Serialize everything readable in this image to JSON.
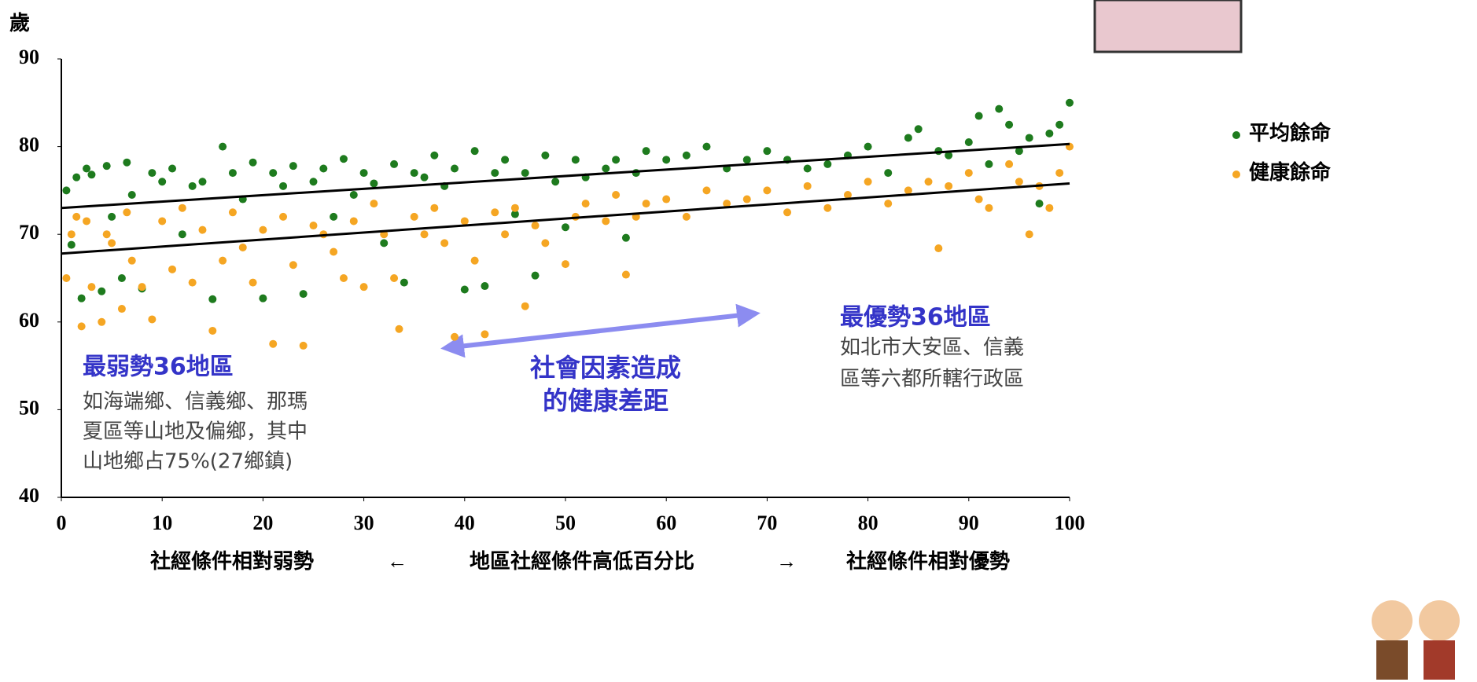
{
  "chart_data": {
    "type": "scatter",
    "y_label": "歲",
    "x_label_parts": [
      "社經條件相對弱勢",
      "←",
      "地區社經條件高低百分比",
      "→",
      "社經條件相對優勢"
    ],
    "xlim": [
      0,
      100
    ],
    "xticks": [
      0,
      10,
      20,
      30,
      40,
      50,
      60,
      70,
      80,
      90,
      100
    ],
    "ylim": [
      40,
      90
    ],
    "yticks": [
      40,
      50,
      60,
      70,
      80,
      90
    ],
    "legend": "right",
    "series": [
      {
        "name": "平均餘命",
        "color": "#1e7b1e",
        "x": [
          0.5,
          1,
          1.5,
          2,
          2.5,
          3,
          4,
          4.5,
          5,
          6,
          6.5,
          7,
          8,
          9,
          10,
          11,
          12,
          13,
          14,
          15,
          16,
          17,
          18,
          19,
          20,
          21,
          22,
          23,
          24,
          25,
          26,
          27,
          28,
          29,
          30,
          31,
          32,
          33,
          34,
          35,
          36,
          37,
          38,
          39,
          40,
          41,
          42,
          43,
          44,
          45,
          46,
          47,
          48,
          49,
          50,
          51,
          52,
          54,
          55,
          56,
          57,
          58,
          60,
          62,
          64,
          66,
          68,
          70,
          72,
          74,
          76,
          78,
          80,
          82,
          84,
          85,
          87,
          88,
          90,
          91,
          92,
          93,
          94,
          95,
          96,
          97,
          98,
          99,
          100
        ],
        "values": [
          75,
          68.8,
          76.5,
          62.7,
          77.5,
          76.8,
          63.5,
          77.8,
          72,
          65,
          78.2,
          74.5,
          63.8,
          77,
          76,
          77.5,
          70,
          75.5,
          76,
          62.6,
          80,
          77,
          74,
          78.2,
          62.7,
          77,
          75.5,
          77.8,
          63.2,
          76,
          77.5,
          72,
          78.6,
          74.5,
          77,
          75.8,
          69,
          78,
          64.5,
          77,
          76.5,
          79,
          75.5,
          77.5,
          63.7,
          79.5,
          64.1,
          77,
          78.5,
          72.3,
          77,
          65.3,
          79,
          76,
          70.8,
          78.5,
          76.5,
          77.5,
          78.5,
          69.6,
          77,
          79.5,
          78.5,
          79,
          80,
          77.5,
          78.5,
          79.5,
          78.5,
          77.5,
          78,
          79,
          80,
          77,
          81,
          82,
          79.5,
          79,
          80.5,
          83.5,
          78,
          84.3,
          82.5,
          79.5,
          81,
          73.5,
          81.5,
          82.5,
          85
        ]
      },
      {
        "name": "健康餘命",
        "color": "#f5a623",
        "x": [
          0.5,
          1,
          1.5,
          2,
          2.5,
          3,
          4,
          4.5,
          5,
          6,
          6.5,
          7,
          8,
          9,
          10,
          11,
          12,
          13,
          14,
          15,
          16,
          17,
          18,
          19,
          20,
          21,
          22,
          23,
          24,
          25,
          26,
          27,
          28,
          29,
          30,
          31,
          32,
          33,
          33.5,
          35,
          36,
          37,
          38,
          39,
          40,
          41,
          42,
          43,
          44,
          45,
          46,
          47,
          48,
          50,
          51,
          52,
          54,
          55,
          56,
          57,
          58,
          60,
          62,
          64,
          66,
          68,
          70,
          72,
          74,
          76,
          78,
          80,
          82,
          84,
          86,
          87,
          88,
          90,
          91,
          92,
          94,
          95,
          96,
          97,
          98,
          99,
          100
        ],
        "values": [
          65,
          70,
          72,
          59.5,
          71.5,
          64,
          60,
          70,
          69,
          61.5,
          72.5,
          67,
          64,
          60.3,
          71.5,
          66,
          73,
          64.5,
          70.5,
          59,
          67,
          72.5,
          68.5,
          64.5,
          70.5,
          57.5,
          72,
          66.5,
          57.3,
          71,
          70,
          68,
          65,
          71.5,
          64,
          73.5,
          70,
          65,
          59.2,
          72,
          70,
          73,
          69,
          58.3,
          71.5,
          67,
          58.6,
          72.5,
          70,
          73,
          61.8,
          71,
          69,
          66.6,
          72,
          73.5,
          71.5,
          74.5,
          65.4,
          72,
          73.5,
          74,
          72,
          75,
          73.5,
          74,
          75,
          72.5,
          75.5,
          73,
          74.5,
          76,
          73.5,
          75,
          76,
          68.4,
          75.5,
          77,
          74,
          73,
          78,
          76,
          70,
          75.5,
          73,
          77,
          80
        ]
      }
    ],
    "trend_lines": [
      {
        "x": [
          0,
          100
        ],
        "values": [
          73,
          80.3
        ]
      },
      {
        "x": [
          0,
          100
        ],
        "values": [
          67.8,
          75.8
        ]
      }
    ],
    "annotations": [
      {
        "title": "最弱勢36地區",
        "lines": [
          "如海端鄉、信義鄉、那瑪",
          "夏區等山地及偏鄉，其中",
          "山地鄉占75%(27鄉鎮)"
        ]
      },
      {
        "title": "最優勢36地區",
        "lines": [
          "如北市大安區、信義",
          "區等六都所轄行政區"
        ]
      },
      {
        "lines": [
          "社會因素造成",
          "的健康差距"
        ]
      }
    ]
  }
}
